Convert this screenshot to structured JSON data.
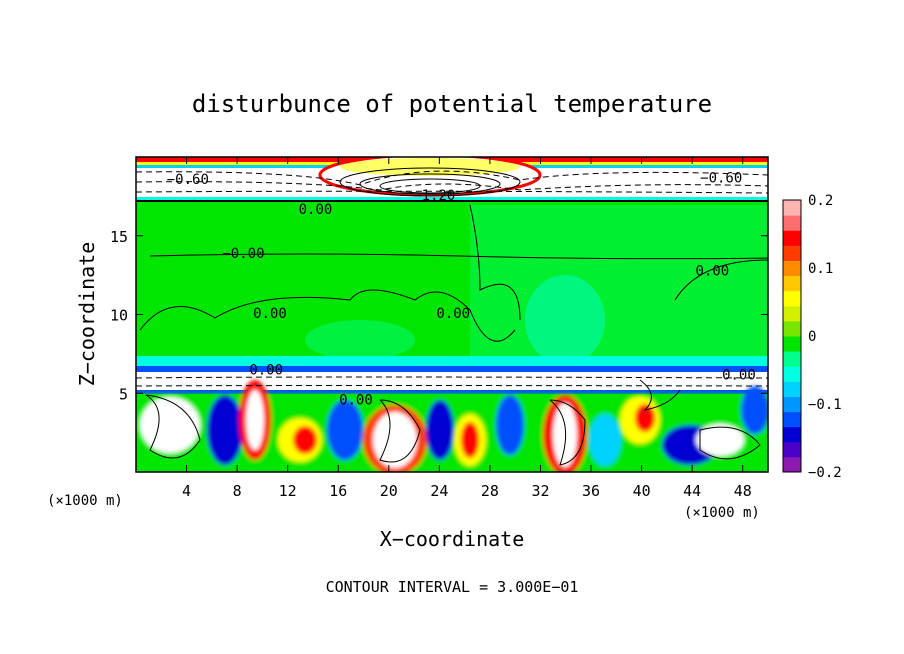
{
  "chart_data": {
    "type": "heatmap",
    "title": "disturbunce of potential temperature",
    "xlabel": "X−coordinate",
    "ylabel": "Z−coordinate",
    "x_unit_left": "(×1000 m)",
    "x_unit_right": "(×1000 m)",
    "xlim": [
      0,
      50
    ],
    "ylim": [
      0,
      20
    ],
    "x_ticks": [
      4,
      8,
      12,
      16,
      20,
      24,
      28,
      32,
      36,
      40,
      44,
      48
    ],
    "x_tick_labels": [
      "4",
      "8",
      "12",
      "16",
      "20",
      "24",
      "28",
      "32",
      "36",
      "40",
      "44",
      "48"
    ],
    "y_ticks": [
      5,
      10,
      15
    ],
    "y_tick_labels": [
      "5",
      "10",
      "15"
    ],
    "colorbar": {
      "range": [
        -0.2,
        0.2
      ],
      "tick_values": [
        0.2,
        0.1,
        0,
        -0.1,
        -0.2
      ],
      "tick_labels": [
        "0.2",
        "0.1",
        "0",
        "−0.1",
        "−0.2"
      ],
      "colors": [
        "#8c1ab0",
        "#4b00c8",
        "#0000d2",
        "#0050ff",
        "#0096ff",
        "#00d2ff",
        "#00ffe1",
        "#00ff8c",
        "#00e600",
        "#78e600",
        "#d2f000",
        "#ffff00",
        "#ffc800",
        "#ff8c00",
        "#ff3c00",
        "#ff0000",
        "#ff6e6e",
        "#ffb4b4"
      ]
    },
    "contour_labels": [
      {
        "text": "−0.60",
        "x": 4.1,
        "z": 18.6
      },
      {
        "text": "−0.60",
        "x": 46.3,
        "z": 18.7
      },
      {
        "text": "−1.20",
        "x": 23.6,
        "z": 17.6
      },
      {
        "text": "0.00",
        "x": 14.2,
        "z": 16.7
      },
      {
        "text": "−0.00",
        "x": 8.5,
        "z": 13.9
      },
      {
        "text": "0.00",
        "x": 10.6,
        "z": 10.1
      },
      {
        "text": "0.00",
        "x": 25.1,
        "z": 10.1
      },
      {
        "text": "0.00",
        "x": 45.6,
        "z": 12.8
      },
      {
        "text": "0.00",
        "x": 10.3,
        "z": 6.5
      },
      {
        "text": "0.00",
        "x": 17.4,
        "z": 4.6
      },
      {
        "text": "0.00",
        "x": 47.7,
        "z": 6.2
      }
    ],
    "contour_interval_text": "CONTOUR INTERVAL = 3.000E−01",
    "grid": false
  }
}
